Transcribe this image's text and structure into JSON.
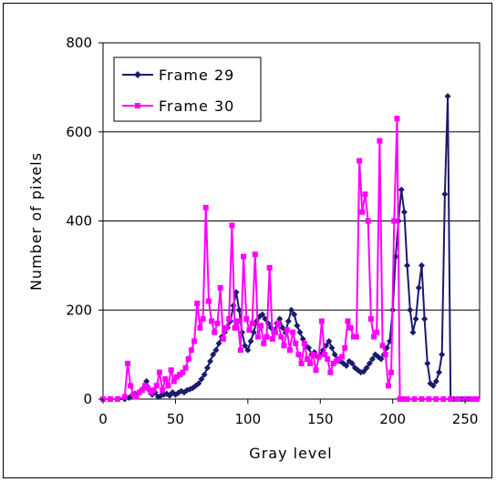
{
  "chart_data": {
    "type": "line",
    "xlabel": "Gray level",
    "ylabel": "Number of pixels",
    "xlim": [
      0,
      260
    ],
    "ylim": [
      0,
      800
    ],
    "xticks": [
      0,
      50,
      100,
      150,
      200,
      250
    ],
    "yticks": [
      0,
      200,
      400,
      600,
      800
    ],
    "grid": "horizontal",
    "legend": "top-left",
    "series": [
      {
        "name": "Frame 29",
        "color": "#1a1a6e",
        "marker": "diamond",
        "x": [
          0,
          5,
          10,
          15,
          18,
          20,
          22,
          25,
          28,
          30,
          32,
          34,
          36,
          38,
          40,
          42,
          44,
          46,
          48,
          50,
          52,
          54,
          56,
          58,
          60,
          62,
          64,
          66,
          68,
          70,
          72,
          74,
          76,
          78,
          80,
          82,
          84,
          86,
          88,
          90,
          92,
          94,
          96,
          98,
          100,
          102,
          104,
          106,
          108,
          110,
          112,
          114,
          116,
          118,
          120,
          122,
          124,
          126,
          128,
          130,
          132,
          134,
          136,
          138,
          140,
          142,
          144,
          146,
          148,
          150,
          152,
          154,
          156,
          158,
          160,
          162,
          164,
          166,
          168,
          170,
          172,
          174,
          176,
          178,
          180,
          182,
          184,
          186,
          188,
          190,
          192,
          194,
          196,
          198,
          200,
          202,
          204,
          206,
          208,
          210,
          212,
          214,
          216,
          218,
          220,
          222,
          224,
          226,
          228,
          230,
          232,
          234,
          236,
          238,
          240,
          242,
          244,
          246,
          248,
          250,
          252,
          254,
          256,
          258
        ],
        "values": [
          0,
          0,
          0,
          0,
          3,
          8,
          12,
          15,
          25,
          40,
          20,
          10,
          15,
          5,
          8,
          10,
          12,
          8,
          15,
          10,
          14,
          18,
          15,
          20,
          22,
          25,
          30,
          35,
          45,
          55,
          70,
          85,
          100,
          110,
          125,
          140,
          150,
          160,
          175,
          210,
          240,
          200,
          150,
          120,
          110,
          130,
          150,
          175,
          185,
          190,
          180,
          170,
          160,
          150,
          170,
          180,
          160,
          150,
          175,
          200,
          190,
          165,
          150,
          135,
          120,
          115,
          100,
          105,
          95,
          100,
          110,
          120,
          130,
          115,
          100,
          90,
          85,
          80,
          75,
          85,
          80,
          70,
          65,
          60,
          62,
          70,
          80,
          90,
          100,
          95,
          90,
          100,
          115,
          130,
          200,
          320,
          400,
          470,
          420,
          300,
          200,
          150,
          180,
          250,
          300,
          180,
          80,
          35,
          30,
          40,
          60,
          100,
          460,
          680,
          0,
          0,
          0,
          0,
          0,
          0,
          0,
          0,
          0,
          0
        ]
      },
      {
        "name": "Frame 30",
        "color": "#ff00ff",
        "marker": "square",
        "x": [
          0,
          5,
          10,
          15,
          17,
          19,
          21,
          23,
          25,
          27,
          29,
          31,
          33,
          35,
          37,
          39,
          41,
          43,
          45,
          47,
          49,
          51,
          53,
          55,
          57,
          59,
          61,
          63,
          65,
          67,
          69,
          71,
          73,
          75,
          77,
          79,
          81,
          83,
          85,
          87,
          89,
          91,
          93,
          95,
          97,
          99,
          101,
          103,
          105,
          107,
          109,
          111,
          113,
          115,
          117,
          119,
          121,
          123,
          125,
          127,
          129,
          131,
          133,
          135,
          137,
          139,
          141,
          143,
          145,
          147,
          149,
          151,
          153,
          155,
          157,
          159,
          161,
          163,
          165,
          167,
          169,
          171,
          173,
          175,
          177,
          179,
          181,
          183,
          185,
          187,
          189,
          191,
          193,
          195,
          197,
          199,
          201,
          203,
          205,
          207,
          210,
          215,
          220,
          225,
          230,
          235,
          240,
          245,
          250,
          255,
          258
        ],
        "values": [
          0,
          0,
          0,
          5,
          80,
          30,
          10,
          5,
          15,
          20,
          30,
          25,
          15,
          20,
          30,
          60,
          20,
          45,
          30,
          65,
          40,
          50,
          55,
          60,
          70,
          90,
          110,
          130,
          215,
          160,
          180,
          430,
          220,
          175,
          150,
          170,
          250,
          135,
          160,
          180,
          390,
          160,
          175,
          110,
          320,
          180,
          155,
          170,
          325,
          140,
          165,
          125,
          140,
          295,
          135,
          150,
          170,
          140,
          120,
          155,
          110,
          150,
          125,
          100,
          80,
          125,
          90,
          80,
          100,
          65,
          95,
          175,
          100,
          90,
          60,
          80,
          85,
          90,
          95,
          115,
          175,
          160,
          140,
          140,
          535,
          420,
          460,
          400,
          180,
          140,
          150,
          580,
          120,
          100,
          30,
          60,
          400,
          630,
          0,
          0,
          0,
          0,
          0,
          0,
          0,
          0,
          0,
          0,
          0,
          0,
          0
        ]
      }
    ]
  }
}
